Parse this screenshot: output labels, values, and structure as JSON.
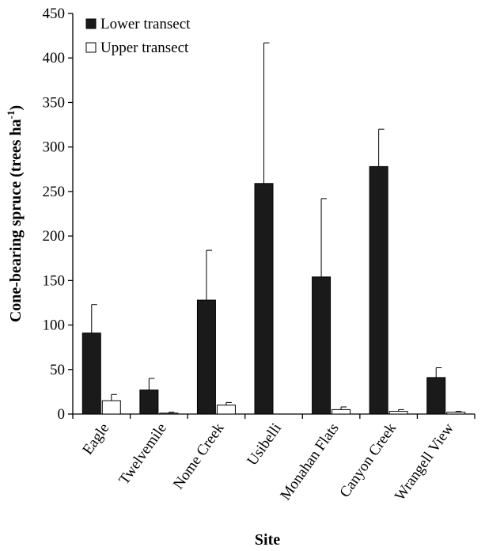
{
  "chart_data": {
    "type": "bar",
    "title": "",
    "xlabel": "Site",
    "ylabel_main": "Cone-bearing spruce (trees ha",
    "ylabel_sup": "-1",
    "ylabel_close": ")",
    "ylim": [
      0,
      450
    ],
    "yticks": [
      0,
      50,
      100,
      150,
      200,
      250,
      300,
      350,
      400,
      450
    ],
    "yticks_labels": [
      "0",
      "50",
      "100",
      "150",
      "200",
      "250",
      "300",
      "350",
      "400",
      "450"
    ],
    "categories": [
      "Eagle",
      "Twelvemile",
      "Nome Creek",
      "Usibelli",
      "Monahan Flats",
      "Canyon Creek",
      "Wrangell View"
    ],
    "legend_position": "top-left",
    "grid": false,
    "series": [
      {
        "name": "Lower transect",
        "color": "#1a1a1a",
        "values": [
          91,
          27,
          128,
          259,
          154,
          278,
          41
        ],
        "error": [
          32,
          13,
          56,
          158,
          88,
          42,
          11
        ]
      },
      {
        "name": "Upper transect",
        "color": "#ffffff",
        "values": [
          15,
          1,
          10,
          0,
          5,
          3,
          2
        ],
        "error": [
          7,
          1,
          3,
          0,
          3,
          2,
          1
        ]
      }
    ]
  }
}
